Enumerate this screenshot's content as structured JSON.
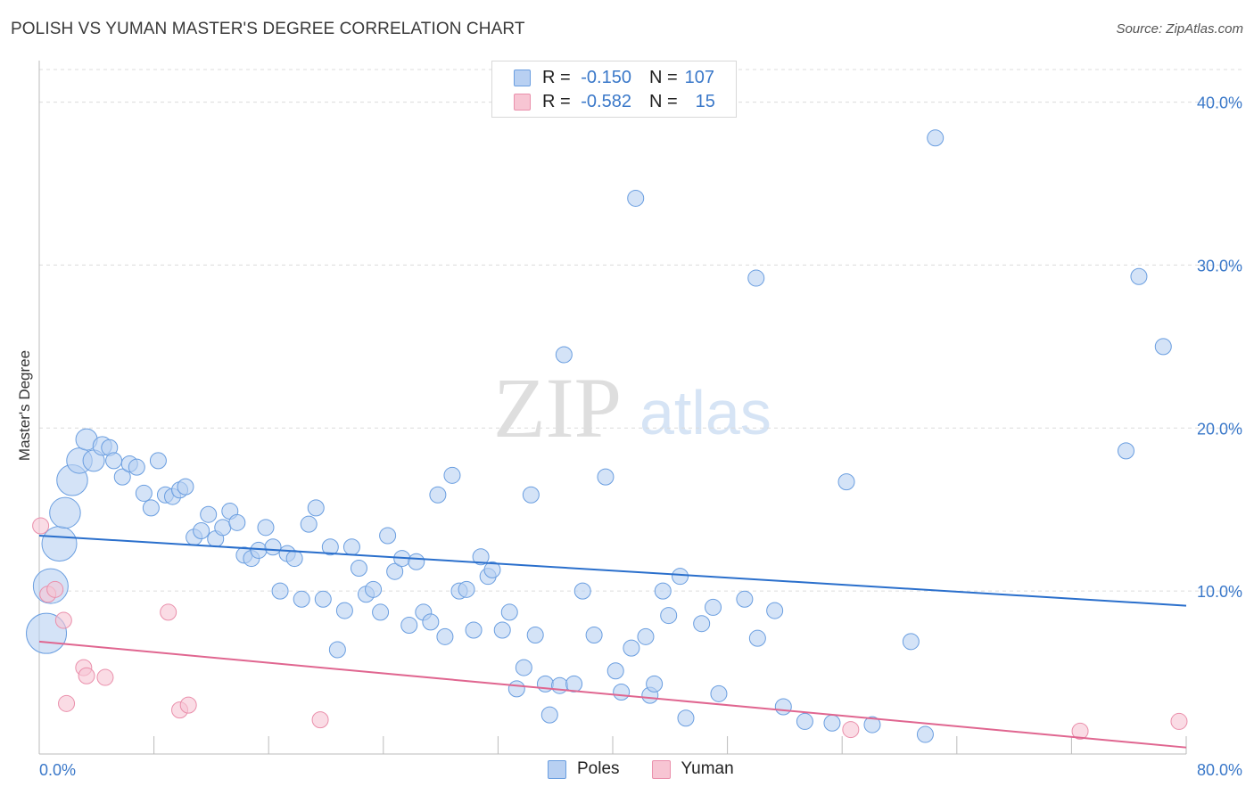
{
  "title": "POLISH VS YUMAN MASTER'S DEGREE CORRELATION CHART",
  "source": "Source: ZipAtlas.com",
  "watermark": {
    "zip": "ZIP",
    "atlas": "atlas"
  },
  "legend": {
    "rows": [
      {
        "r_label": "R =",
        "r_value": "-0.150",
        "n_label": "N =",
        "n_value": "107"
      },
      {
        "r_label": "R =",
        "r_value": "-0.582",
        "n_label": "N =",
        "n_value": "15"
      }
    ]
  },
  "bottom_legend": [
    "Poles",
    "Yuman"
  ],
  "colors": {
    "poles_fill": "#b8d0f2",
    "poles_stroke": "#6a9ee0",
    "poles_line": "#2a6fcc",
    "yuman_fill": "#f7c5d3",
    "yuman_stroke": "#ea8fab",
    "yuman_line": "#e06690",
    "tick_label": "#3a78c9",
    "grid": "#dcdcdc"
  },
  "chart_data": {
    "type": "scatter",
    "title": "POLISH VS YUMAN MASTER'S DEGREE CORRELATION CHART",
    "xlabel": "",
    "ylabel": "Master's Degree",
    "xlim": [
      0,
      80
    ],
    "ylim": [
      0,
      42
    ],
    "x_tick_labels": [
      "0.0%",
      "80.0%"
    ],
    "y_ticks": [
      10,
      20,
      30,
      40
    ],
    "y_tick_labels": [
      "10.0%",
      "20.0%",
      "30.0%",
      "40.0%"
    ],
    "grid": "horizontal dashed",
    "legend_position": "top-center",
    "series": [
      {
        "name": "Poles",
        "stats": {
          "R": -0.15,
          "N": 107
        },
        "trend": {
          "x": [
            0,
            80
          ],
          "y": [
            13.4,
            9.1
          ]
        },
        "points": [
          [
            0.5,
            7.4,
            3
          ],
          [
            0.8,
            10.3,
            2.6
          ],
          [
            1.4,
            12.9,
            2.6
          ],
          [
            1.8,
            14.8,
            2.3
          ],
          [
            2.3,
            16.8,
            2.3
          ],
          [
            2.8,
            18.0,
            1.9
          ],
          [
            3.3,
            19.3,
            1.6
          ],
          [
            3.8,
            18.0,
            1.6
          ],
          [
            4.4,
            18.9,
            1.4
          ],
          [
            4.9,
            18.8,
            1.2
          ],
          [
            5.2,
            18.0,
            1.2
          ],
          [
            5.8,
            17.0,
            1.2
          ],
          [
            6.3,
            17.8,
            1.2
          ],
          [
            6.8,
            17.6,
            1.2
          ],
          [
            7.3,
            16.0,
            1.2
          ],
          [
            7.8,
            15.1,
            1.2
          ],
          [
            8.3,
            18.0,
            1.2
          ],
          [
            8.8,
            15.9,
            1.2
          ],
          [
            9.3,
            15.8,
            1.2
          ],
          [
            9.8,
            16.2,
            1.2
          ],
          [
            10.2,
            16.4,
            1.2
          ],
          [
            10.8,
            13.3,
            1.2
          ],
          [
            11.3,
            13.7,
            1.2
          ],
          [
            11.8,
            14.7,
            1.2
          ],
          [
            12.3,
            13.2,
            1.2
          ],
          [
            12.8,
            13.9,
            1.2
          ],
          [
            13.3,
            14.9,
            1.2
          ],
          [
            13.8,
            14.2,
            1.2
          ],
          [
            14.3,
            12.2,
            1.2
          ],
          [
            14.8,
            12.0,
            1.2
          ],
          [
            15.3,
            12.5,
            1.2
          ],
          [
            15.8,
            13.9,
            1.2
          ],
          [
            16.3,
            12.7,
            1.2
          ],
          [
            16.8,
            10.0,
            1.2
          ],
          [
            17.3,
            12.3,
            1.2
          ],
          [
            17.8,
            12.0,
            1.2
          ],
          [
            18.3,
            9.5,
            1.2
          ],
          [
            18.8,
            14.1,
            1.2
          ],
          [
            19.3,
            15.1,
            1.2
          ],
          [
            19.8,
            9.5,
            1.2
          ],
          [
            20.3,
            12.7,
            1.2
          ],
          [
            20.8,
            6.4,
            1.2
          ],
          [
            21.3,
            8.8,
            1.2
          ],
          [
            21.8,
            12.7,
            1.2
          ],
          [
            22.3,
            11.4,
            1.2
          ],
          [
            22.8,
            9.8,
            1.2
          ],
          [
            23.3,
            10.1,
            1.2
          ],
          [
            23.8,
            8.7,
            1.2
          ],
          [
            24.3,
            13.4,
            1.2
          ],
          [
            24.8,
            11.2,
            1.2
          ],
          [
            25.3,
            12.0,
            1.2
          ],
          [
            25.8,
            7.9,
            1.2
          ],
          [
            26.3,
            11.8,
            1.2
          ],
          [
            26.8,
            8.7,
            1.2
          ],
          [
            27.3,
            8.1,
            1.2
          ],
          [
            27.8,
            15.9,
            1.2
          ],
          [
            28.3,
            7.2,
            1.2
          ],
          [
            28.8,
            17.1,
            1.2
          ],
          [
            29.3,
            10.0,
            1.2
          ],
          [
            29.8,
            10.1,
            1.2
          ],
          [
            30.3,
            7.6,
            1.2
          ],
          [
            30.8,
            12.1,
            1.2
          ],
          [
            31.3,
            10.9,
            1.2
          ],
          [
            31.6,
            11.3,
            1.2
          ],
          [
            32.3,
            7.6,
            1.2
          ],
          [
            32.8,
            8.7,
            1.2
          ],
          [
            33.3,
            4.0,
            1.2
          ],
          [
            33.8,
            5.3,
            1.2
          ],
          [
            34.3,
            15.9,
            1.2
          ],
          [
            34.6,
            7.3,
            1.2
          ],
          [
            35.3,
            4.3,
            1.2
          ],
          [
            35.6,
            2.4,
            1.2
          ],
          [
            36.3,
            4.2,
            1.2
          ],
          [
            36.6,
            24.5,
            1.2
          ],
          [
            37.3,
            4.3,
            1.2
          ],
          [
            37.9,
            10.0,
            1.2
          ],
          [
            38.7,
            7.3,
            1.2
          ],
          [
            39.5,
            17.0,
            1.2
          ],
          [
            40.2,
            5.1,
            1.2
          ],
          [
            40.6,
            3.8,
            1.2
          ],
          [
            41.3,
            6.5,
            1.2
          ],
          [
            41.6,
            34.1,
            1.2
          ],
          [
            42.3,
            7.2,
            1.2
          ],
          [
            42.6,
            3.6,
            1.2
          ],
          [
            42.9,
            4.3,
            1.2
          ],
          [
            43.5,
            10.0,
            1.2
          ],
          [
            43.9,
            8.5,
            1.2
          ],
          [
            44.7,
            10.9,
            1.2
          ],
          [
            45.1,
            2.2,
            1.2
          ],
          [
            46.2,
            8.0,
            1.2
          ],
          [
            47.0,
            9.0,
            1.2
          ],
          [
            47.4,
            3.7,
            1.2
          ],
          [
            49.2,
            9.5,
            1.2
          ],
          [
            50.0,
            29.2,
            1.2
          ],
          [
            50.1,
            7.1,
            1.2
          ],
          [
            51.3,
            8.8,
            1.2
          ],
          [
            51.9,
            2.9,
            1.2
          ],
          [
            53.4,
            2.0,
            1.2
          ],
          [
            55.3,
            1.9,
            1.2
          ],
          [
            56.3,
            16.7,
            1.2
          ],
          [
            58.1,
            1.8,
            1.2
          ],
          [
            60.8,
            6.9,
            1.2
          ],
          [
            61.8,
            1.2,
            1.2
          ],
          [
            62.5,
            37.8,
            1.2
          ],
          [
            75.8,
            18.6,
            1.2
          ],
          [
            76.7,
            29.3,
            1.2
          ],
          [
            78.4,
            25.0,
            1.2
          ]
        ]
      },
      {
        "name": "Yuman",
        "stats": {
          "R": -0.582,
          "N": 15
        },
        "trend": {
          "x": [
            0,
            80
          ],
          "y": [
            6.9,
            0.4
          ]
        },
        "points": [
          [
            0.1,
            14.0,
            1.2
          ],
          [
            0.6,
            9.8,
            1.2
          ],
          [
            1.1,
            10.1,
            1.2
          ],
          [
            1.7,
            8.2,
            1.2
          ],
          [
            1.9,
            3.1,
            1.2
          ],
          [
            3.1,
            5.3,
            1.2
          ],
          [
            3.3,
            4.8,
            1.2
          ],
          [
            4.6,
            4.7,
            1.2
          ],
          [
            9.0,
            8.7,
            1.2
          ],
          [
            9.8,
            2.7,
            1.2
          ],
          [
            10.4,
            3.0,
            1.2
          ],
          [
            19.6,
            2.1,
            1.2
          ],
          [
            56.6,
            1.5,
            1.2
          ],
          [
            72.6,
            1.4,
            1.2
          ],
          [
            79.5,
            2.0,
            1.2
          ]
        ]
      }
    ]
  }
}
